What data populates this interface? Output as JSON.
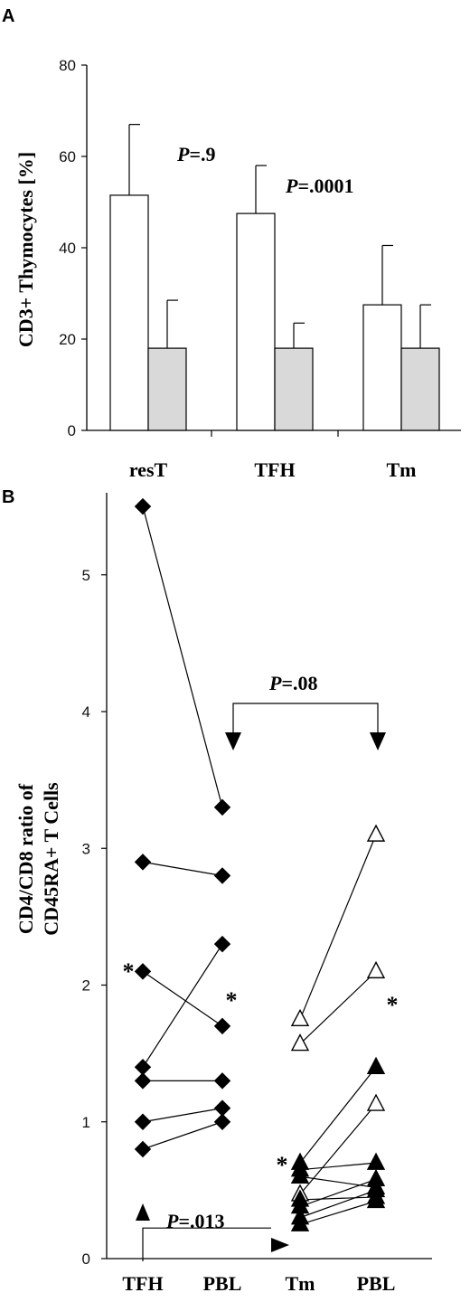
{
  "panels": [
    {
      "label": "A"
    },
    {
      "label": "B"
    }
  ],
  "chart_data": [
    {
      "panel": "A",
      "type": "bar",
      "ylabel": "CD3+  Thymocytes [%]",
      "ylim": [
        0,
        80
      ],
      "yticks": [
        "0",
        "20",
        "40",
        "60",
        "80"
      ],
      "categories": [
        "resT",
        "TFH",
        "Tm"
      ],
      "series": [
        {
          "values": [
            51.5,
            47.5,
            27.5
          ],
          "errors": [
            15.5,
            10.5,
            13
          ],
          "fill": "#ffffff"
        },
        {
          "values": [
            18,
            18,
            18
          ],
          "errors": [
            10.5,
            5.5,
            9.5
          ],
          "fill": "#d9d9d9"
        }
      ],
      "annotations": [
        {
          "category": "resT",
          "text": "=.9",
          "prefix": "P"
        },
        {
          "category": "TFH",
          "text": "=.0001",
          "prefix": "P"
        }
      ],
      "grid": false
    },
    {
      "panel": "B",
      "type": "scatter",
      "ylabel_lines": [
        "CD4/CD8 ratio of",
        "CD45RA+ T Cells"
      ],
      "ylim": [
        0,
        5.6
      ],
      "yticks": [
        "0",
        "1",
        "2",
        "3",
        "4",
        "5"
      ],
      "categories": [
        "TFH",
        "PBL",
        "Tm",
        "PBL"
      ],
      "series": [
        {
          "marker": "diamond-filled",
          "pairs": [
            [
              5.5,
              3.3
            ],
            [
              2.9,
              2.8
            ],
            [
              2.1,
              1.7
            ],
            [
              1.4,
              2.3
            ],
            [
              1.3,
              1.3
            ],
            [
              1.0,
              1.1
            ],
            [
              0.8,
              1.0
            ]
          ]
        },
        {
          "marker": "triangle",
          "pairs": [
            {
              "tm": 1.75,
              "pbl": 3.1,
              "open": true
            },
            {
              "tm": 1.57,
              "pbl": 2.1,
              "open": true
            },
            {
              "tm": 0.7,
              "pbl": 1.4,
              "open": false
            },
            {
              "tm": 0.65,
              "pbl": 0.7,
              "open": false
            },
            {
              "tm": 0.6,
              "pbl": 0.52,
              "open": false
            },
            {
              "tm": 0.47,
              "pbl": 1.13,
              "open": true
            },
            {
              "tm": 0.43,
              "pbl": 0.45,
              "open": false
            },
            {
              "tm": 0.38,
              "pbl": 0.58,
              "open": false
            },
            {
              "tm": 0.3,
              "pbl": 0.5,
              "open": false
            },
            {
              "tm": 0.25,
              "pbl": 0.42,
              "open": false
            }
          ]
        }
      ],
      "asterisks": [
        {
          "near": "TFH",
          "y": 2.1,
          "text": "*"
        },
        {
          "near": "PBL-1",
          "y": 1.72,
          "text": "*"
        },
        {
          "near": "Tm",
          "y": 0.67,
          "text": "*"
        },
        {
          "near": "PBL-2",
          "y": 1.13,
          "text": "*"
        }
      ],
      "brackets": [
        {
          "from": "PBL-1",
          "to": "PBL-2",
          "text": "=.08",
          "prefix": "P"
        },
        {
          "from": "TFH",
          "to": "Tm",
          "text": "=.013",
          "prefix": "P"
        }
      ],
      "grid": false
    }
  ]
}
